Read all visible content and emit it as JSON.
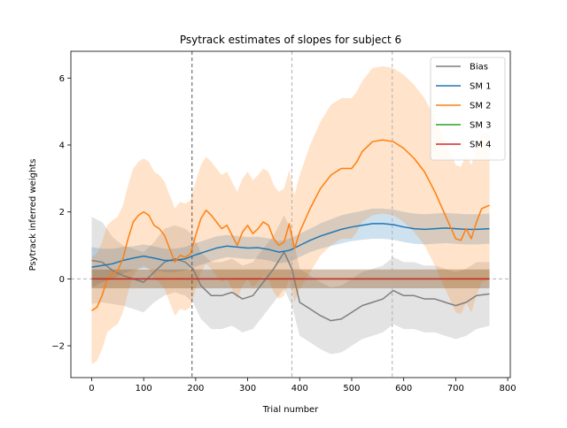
{
  "chart_data": {
    "type": "line",
    "title": "Psytrack estimates of slopes for subject 6",
    "xlabel": "Trial number",
    "ylabel": "Psytrack inferred weights",
    "xlim": [
      -40,
      805
    ],
    "ylim": [
      -2.95,
      6.8
    ],
    "xticks": [
      0,
      100,
      200,
      300,
      400,
      500,
      600,
      700,
      800
    ],
    "yticks": [
      -2,
      0,
      2,
      4,
      6
    ],
    "grid": false,
    "legend": "top-right",
    "hline": 0,
    "vlines": [
      {
        "x": 193,
        "style": "dark"
      },
      {
        "x": 385,
        "style": "light"
      },
      {
        "x": 578,
        "style": "light"
      }
    ],
    "series": [
      {
        "name": "Bias",
        "color": "#7f7f7f",
        "x": [
          0,
          20,
          40,
          60,
          80,
          100,
          120,
          140,
          160,
          180,
          195,
          210,
          230,
          250,
          270,
          290,
          310,
          330,
          350,
          370,
          385,
          400,
          420,
          440,
          460,
          480,
          500,
          520,
          540,
          560,
          580,
          600,
          620,
          640,
          660,
          680,
          700,
          720,
          740,
          765
        ],
        "y": [
          0.55,
          0.5,
          0.25,
          0.1,
          0.0,
          -0.1,
          0.2,
          0.5,
          0.6,
          0.5,
          0.3,
          -0.2,
          -0.5,
          -0.5,
          -0.4,
          -0.6,
          -0.5,
          -0.1,
          0.3,
          0.8,
          0.3,
          -0.7,
          -0.9,
          -1.1,
          -1.25,
          -1.2,
          -1.0,
          -0.8,
          -0.7,
          -0.6,
          -0.35,
          -0.5,
          -0.5,
          -0.6,
          -0.6,
          -0.7,
          -0.8,
          -0.7,
          -0.5,
          -0.45
        ],
        "ci": [
          1.3,
          1.2,
          1.0,
          0.9,
          0.9,
          0.9,
          0.9,
          1.0,
          1.0,
          1.0,
          1.0,
          1.0,
          1.0,
          1.0,
          1.0,
          1.0,
          1.0,
          1.0,
          1.0,
          1.1,
          1.1,
          1.0,
          1.0,
          1.0,
          1.0,
          1.0,
          1.0,
          1.0,
          1.0,
          1.0,
          1.0,
          1.0,
          1.0,
          1.0,
          1.0,
          1.0,
          1.0,
          1.0,
          1.0,
          0.95
        ]
      },
      {
        "name": "SM 1",
        "color": "#1f77b4",
        "x": [
          0,
          20,
          40,
          60,
          80,
          100,
          120,
          140,
          160,
          180,
          200,
          220,
          240,
          260,
          280,
          300,
          320,
          340,
          360,
          380,
          400,
          420,
          440,
          460,
          480,
          500,
          520,
          540,
          560,
          580,
          600,
          620,
          640,
          660,
          680,
          700,
          720,
          740,
          765
        ],
        "y": [
          0.35,
          0.4,
          0.45,
          0.55,
          0.62,
          0.68,
          0.62,
          0.55,
          0.55,
          0.6,
          0.72,
          0.82,
          0.92,
          0.98,
          0.95,
          0.92,
          0.93,
          0.88,
          0.8,
          0.85,
          1.0,
          1.15,
          1.28,
          1.38,
          1.48,
          1.55,
          1.6,
          1.65,
          1.65,
          1.62,
          1.55,
          1.5,
          1.48,
          1.5,
          1.52,
          1.5,
          1.48,
          1.48,
          1.5
        ],
        "ci": [
          0.6,
          0.5,
          0.45,
          0.4,
          0.35,
          0.35,
          0.35,
          0.35,
          0.35,
          0.35,
          0.35,
          0.35,
          0.35,
          0.33,
          0.33,
          0.33,
          0.33,
          0.33,
          0.33,
          0.35,
          0.35,
          0.35,
          0.38,
          0.4,
          0.42,
          0.42,
          0.43,
          0.45,
          0.45,
          0.45,
          0.45,
          0.45,
          0.45,
          0.45,
          0.45,
          0.45,
          0.45,
          0.45,
          0.45
        ]
      },
      {
        "name": "SM 2",
        "color": "#ff7f0e",
        "x": [
          0,
          10,
          20,
          30,
          40,
          50,
          60,
          70,
          80,
          90,
          100,
          110,
          120,
          130,
          140,
          150,
          160,
          170,
          180,
          190,
          200,
          210,
          220,
          230,
          240,
          250,
          260,
          270,
          280,
          290,
          300,
          310,
          320,
          330,
          340,
          350,
          360,
          370,
          380,
          390,
          400,
          420,
          440,
          460,
          480,
          500,
          510,
          520,
          540,
          560,
          580,
          600,
          620,
          640,
          660,
          680,
          700,
          710,
          720,
          730,
          740,
          750,
          765
        ],
        "y": [
          -0.95,
          -0.85,
          -0.5,
          0.0,
          0.15,
          0.25,
          0.6,
          1.2,
          1.7,
          1.9,
          2.0,
          1.9,
          1.6,
          1.5,
          1.3,
          0.9,
          0.5,
          0.7,
          0.65,
          0.75,
          1.3,
          1.8,
          2.05,
          1.9,
          1.7,
          1.5,
          1.6,
          1.3,
          1.0,
          1.4,
          1.6,
          1.35,
          1.5,
          1.7,
          1.6,
          1.2,
          1.0,
          1.1,
          1.65,
          0.9,
          1.4,
          2.1,
          2.7,
          3.1,
          3.3,
          3.3,
          3.5,
          3.8,
          4.1,
          4.15,
          4.1,
          3.9,
          3.6,
          3.2,
          2.6,
          1.9,
          1.2,
          1.15,
          1.5,
          1.2,
          1.7,
          2.1,
          2.2
        ],
        "ci": [
          1.6,
          1.6,
          1.6,
          1.6,
          1.6,
          1.6,
          1.6,
          1.6,
          1.6,
          1.6,
          1.6,
          1.6,
          1.6,
          1.6,
          1.6,
          1.6,
          1.6,
          1.6,
          1.6,
          1.6,
          1.6,
          1.6,
          1.6,
          1.6,
          1.6,
          1.6,
          1.6,
          1.6,
          1.6,
          1.6,
          1.6,
          1.6,
          1.6,
          1.6,
          1.6,
          1.6,
          1.6,
          1.6,
          1.6,
          1.6,
          1.7,
          1.9,
          2.0,
          2.1,
          2.1,
          2.1,
          2.1,
          2.1,
          2.2,
          2.2,
          2.2,
          2.2,
          2.2,
          2.2,
          2.2,
          2.2,
          2.2,
          2.2,
          2.2,
          2.2,
          2.2,
          2.2,
          2.2
        ]
      },
      {
        "name": "SM 3",
        "color": "#2ca02c",
        "x": [
          0,
          765
        ],
        "y": [
          0.0,
          0.0
        ],
        "ci": [
          0.28,
          0.28
        ]
      },
      {
        "name": "SM 4",
        "color": "#d62728",
        "x": [
          0,
          765
        ],
        "y": [
          0.0,
          0.0
        ],
        "ci": [
          0.28,
          0.28
        ]
      }
    ]
  }
}
